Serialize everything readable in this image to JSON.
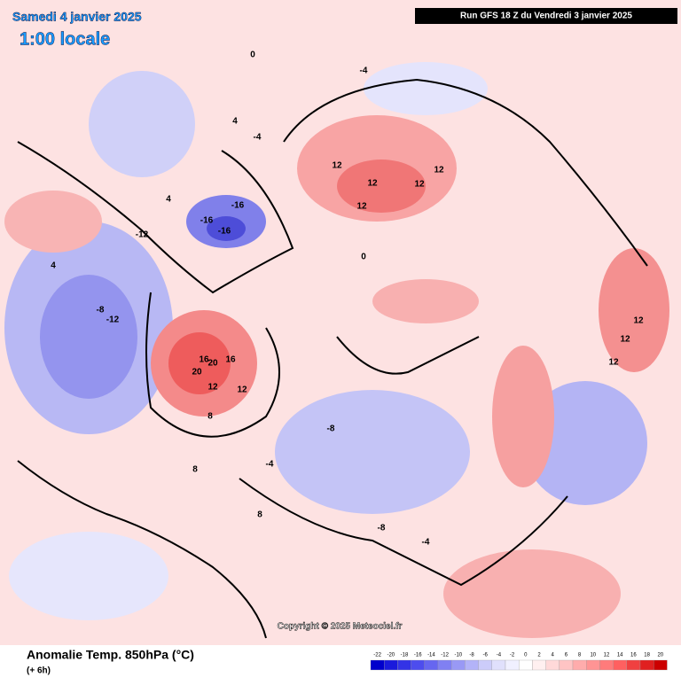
{
  "header": {
    "date": "Samedi 4 janvier 2025",
    "time": "1:00 locale",
    "run": "Run GFS 18 Z du Vendredi 3 janvier 2025"
  },
  "footer": {
    "title": "Anomalie Temp. 850hPa (°C)",
    "lead": "(+ 6h)",
    "copyright": "Copyright © 2025 Meteociel.fr"
  },
  "legend": {
    "ticks": [
      -22,
      -20,
      -18,
      -16,
      -14,
      -12,
      -10,
      -8,
      -6,
      -4,
      -2,
      0,
      2,
      4,
      6,
      8,
      10,
      12,
      14,
      16,
      18,
      20
    ],
    "colors": [
      "#0000cc",
      "#1a1adc",
      "#3333e6",
      "#4d4dee",
      "#6666f0",
      "#8080f2",
      "#9999f5",
      "#b3b3f8",
      "#ccccfa",
      "#e0e0fc",
      "#f0f0ff",
      "#ffffff",
      "#fff0f0",
      "#ffd9d9",
      "#ffc4c4",
      "#ffacac",
      "#ff9494",
      "#ff7b7b",
      "#ff6060",
      "#f04040",
      "#e02020",
      "#cc0000"
    ]
  },
  "map_labels": [
    "12",
    "12",
    "12",
    "12",
    "12",
    "-16",
    "-16",
    "-16",
    "20",
    "16",
    "16",
    "20",
    "12",
    "12",
    "-12",
    "-12",
    "-8",
    "-8",
    "-4",
    "-4",
    "4",
    "4",
    "8",
    "8",
    "8",
    "12",
    "12",
    "12",
    "0",
    "0",
    "-8",
    "-4",
    "4",
    "-4"
  ]
}
